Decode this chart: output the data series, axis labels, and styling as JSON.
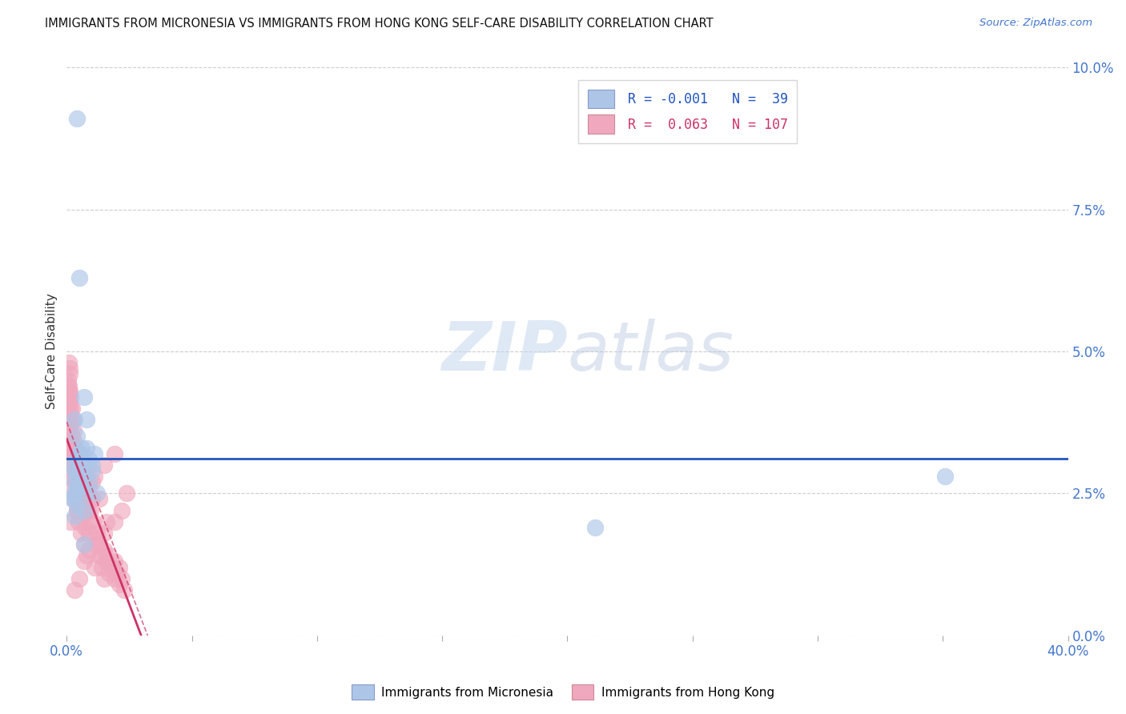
{
  "title": "IMMIGRANTS FROM MICRONESIA VS IMMIGRANTS FROM HONG KONG SELF-CARE DISABILITY CORRELATION CHART",
  "source": "Source: ZipAtlas.com",
  "ylabel": "Self-Care Disability",
  "color_blue": "#adc6e8",
  "color_pink": "#f0a8be",
  "color_blue_line": "#2255bb",
  "color_pink_line": "#cc3366",
  "color_grid": "#cccccc",
  "xlim": [
    0.0,
    0.4
  ],
  "ylim": [
    0.0,
    0.1
  ],
  "yticks": [
    0.0,
    0.025,
    0.05,
    0.075,
    0.1
  ],
  "ytick_labels": [
    "0.0%",
    "2.5%",
    "5.0%",
    "7.5%",
    "10.0%"
  ],
  "xtick_labels_ends": [
    "0.0%",
    "40.0%"
  ],
  "legend_r1": "R = -0.001",
  "legend_n1": "N =  39",
  "legend_r2": "R =  0.063",
  "legend_n2": "N = 107",
  "legend_bot1": "Immigrants from Micronesia",
  "legend_bot2": "Immigrants from Hong Kong",
  "watermark_zip": "ZIP",
  "watermark_atlas": "atlas",
  "micro_x": [
    0.002,
    0.004,
    0.003,
    0.005,
    0.006,
    0.003,
    0.004,
    0.002,
    0.005,
    0.004,
    0.003,
    0.006,
    0.004,
    0.005,
    0.003,
    0.007,
    0.004,
    0.005,
    0.006,
    0.003,
    0.008,
    0.005,
    0.004,
    0.006,
    0.003,
    0.009,
    0.007,
    0.008,
    0.01,
    0.009,
    0.011,
    0.012,
    0.01,
    0.008,
    0.007,
    0.006,
    0.007,
    0.351,
    0.211
  ],
  "micro_y": [
    0.03,
    0.091,
    0.027,
    0.063,
    0.033,
    0.029,
    0.035,
    0.024,
    0.032,
    0.026,
    0.038,
    0.03,
    0.023,
    0.032,
    0.021,
    0.042,
    0.031,
    0.029,
    0.028,
    0.025,
    0.038,
    0.026,
    0.028,
    0.032,
    0.024,
    0.031,
    0.028,
    0.033,
    0.03,
    0.027,
    0.032,
    0.025,
    0.029,
    0.025,
    0.022,
    0.03,
    0.016,
    0.028,
    0.019
  ],
  "hk_x": [
    0.0005,
    0.001,
    0.0008,
    0.0012,
    0.0015,
    0.0006,
    0.001,
    0.0009,
    0.0013,
    0.0007,
    0.0011,
    0.0015,
    0.0008,
    0.001,
    0.0016,
    0.0005,
    0.0012,
    0.0009,
    0.0014,
    0.0007,
    0.0018,
    0.0011,
    0.0006,
    0.0015,
    0.001,
    0.002,
    0.0018,
    0.0022,
    0.002,
    0.0025,
    0.003,
    0.0022,
    0.0028,
    0.0035,
    0.0026,
    0.003,
    0.004,
    0.0038,
    0.0032,
    0.0045,
    0.004,
    0.003,
    0.0042,
    0.005,
    0.0046,
    0.006,
    0.0052,
    0.007,
    0.0058,
    0.0065,
    0.006,
    0.0072,
    0.008,
    0.0068,
    0.009,
    0.0078,
    0.0085,
    0.01,
    0.0088,
    0.011,
    0.009,
    0.0082,
    0.012,
    0.0095,
    0.013,
    0.0105,
    0.014,
    0.012,
    0.015,
    0.013,
    0.016,
    0.014,
    0.017,
    0.015,
    0.018,
    0.016,
    0.019,
    0.017,
    0.02,
    0.018,
    0.021,
    0.019,
    0.022,
    0.02,
    0.023,
    0.021,
    0.024,
    0.022,
    0.016,
    0.012,
    0.009,
    0.007,
    0.005,
    0.003,
    0.0025,
    0.0015,
    0.011,
    0.0085,
    0.015,
    0.019,
    0.004,
    0.006,
    0.008,
    0.013,
    0.01,
    0.015,
    0.019
  ],
  "hk_y": [
    0.045,
    0.048,
    0.042,
    0.046,
    0.04,
    0.044,
    0.038,
    0.043,
    0.047,
    0.041,
    0.036,
    0.039,
    0.044,
    0.035,
    0.037,
    0.032,
    0.041,
    0.033,
    0.038,
    0.036,
    0.034,
    0.043,
    0.03,
    0.042,
    0.028,
    0.04,
    0.03,
    0.035,
    0.032,
    0.038,
    0.033,
    0.028,
    0.036,
    0.031,
    0.026,
    0.034,
    0.029,
    0.025,
    0.032,
    0.027,
    0.022,
    0.03,
    0.024,
    0.028,
    0.02,
    0.031,
    0.022,
    0.026,
    0.018,
    0.024,
    0.021,
    0.019,
    0.028,
    0.016,
    0.026,
    0.014,
    0.022,
    0.024,
    0.02,
    0.012,
    0.018,
    0.024,
    0.016,
    0.022,
    0.014,
    0.02,
    0.012,
    0.018,
    0.01,
    0.016,
    0.013,
    0.014,
    0.011,
    0.015,
    0.012,
    0.013,
    0.01,
    0.014,
    0.011,
    0.012,
    0.009,
    0.013,
    0.01,
    0.011,
    0.008,
    0.012,
    0.025,
    0.022,
    0.02,
    0.017,
    0.015,
    0.013,
    0.01,
    0.008,
    0.024,
    0.02,
    0.028,
    0.03,
    0.018,
    0.02,
    0.022,
    0.025,
    0.022,
    0.024,
    0.027,
    0.03,
    0.032
  ]
}
